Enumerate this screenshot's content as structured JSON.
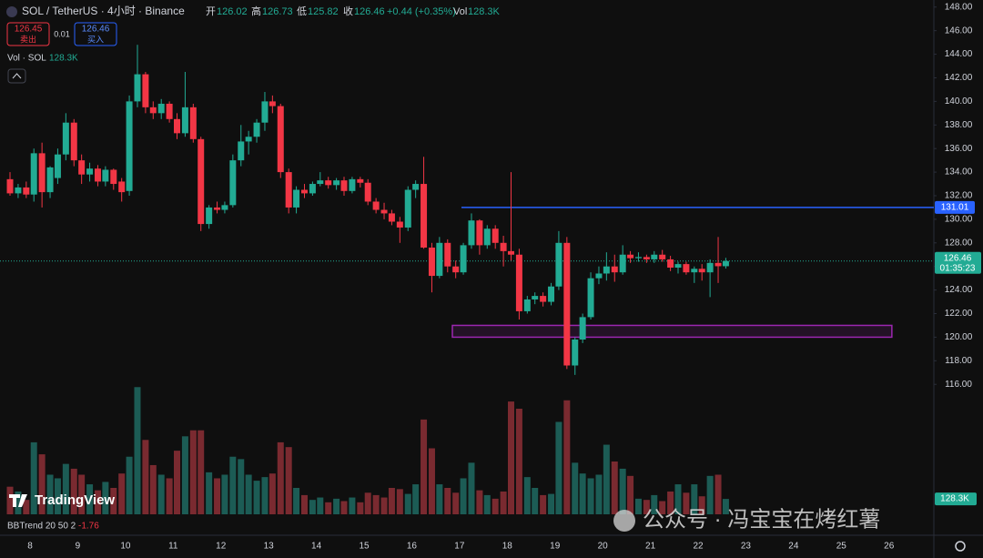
{
  "header": {
    "symbol": "SOL / TetherUS · 4小时 · Binance",
    "open_label": "开",
    "open": "126.02",
    "high_label": "高",
    "high": "126.73",
    "low_label": "低",
    "low": "125.82",
    "close_label": "收",
    "close": "126.46",
    "change": "+0.44 (+0.35%)",
    "vol_label": "Vol",
    "vol": "128.3K",
    "sell_price": "126.45",
    "sell": "卖出",
    "spread": "0.01",
    "buy_price": "126.46",
    "buy": "买入",
    "volume_indicator": "Vol · SOL",
    "volume_indicator_value": "128.3K",
    "bbtrend": "BBTrend 20 50 2",
    "bbtrend_value": "-1.76",
    "logo": "TradingView",
    "watermark": "公众号 · 冯宝宝在烤红薯"
  },
  "chart_data": {
    "type": "candlestick",
    "x": [
      7.58,
      7.75,
      7.92,
      8.08,
      8.25,
      8.42,
      8.58,
      8.75,
      8.92,
      9.08,
      9.25,
      9.42,
      9.58,
      9.75,
      9.92,
      10.08,
      10.25,
      10.42,
      10.58,
      10.75,
      10.92,
      11.08,
      11.25,
      11.42,
      11.58,
      11.75,
      11.92,
      12.08,
      12.25,
      12.42,
      12.58,
      12.75,
      12.92,
      13.08,
      13.25,
      13.42,
      13.58,
      13.75,
      13.92,
      14.08,
      14.25,
      14.42,
      14.58,
      14.75,
      14.92,
      15.08,
      15.25,
      15.42,
      15.58,
      15.75,
      15.92,
      16.08,
      16.25,
      16.42,
      16.58,
      16.75,
      16.92,
      17.08,
      17.25,
      17.42,
      17.58,
      17.75,
      17.92,
      18.08,
      18.25,
      18.42,
      18.58,
      18.75,
      18.92,
      19.08,
      19.25,
      19.42,
      19.58,
      19.75,
      19.92,
      20.08,
      20.25,
      20.42,
      20.58,
      20.75,
      20.92,
      21.08,
      21.25,
      21.42,
      21.58,
      21.75,
      21.92,
      22.08,
      22.25,
      22.42,
      22.58
    ],
    "open": [
      133.4,
      132.2,
      132.7,
      132.1,
      135.6,
      132.3,
      133.5,
      135.5,
      138.2,
      135,
      133.8,
      134.3,
      133.2,
      134.2,
      133.2,
      132.4,
      140,
      142.3,
      139.5,
      139,
      139.8,
      138.5,
      137.3,
      139.5,
      136.8,
      129.6,
      131,
      130.8,
      131.2,
      135,
      136.6,
      137,
      138.2,
      140,
      139.6,
      134,
      131,
      132.5,
      132.2,
      133,
      133.3,
      132.9,
      133.3,
      132.4,
      133.4,
      133.1,
      131.5,
      130.8,
      130.5,
      129.8,
      129.3,
      132.5,
      133,
      127.6,
      125.2,
      128,
      126,
      125.5,
      127.8,
      129.9,
      127.8,
      129.2,
      128,
      127.3,
      127,
      122.2,
      123.2,
      123.5,
      123,
      124.3,
      128,
      117.6,
      119.8,
      121.7,
      125,
      125.4,
      126,
      125.5,
      127,
      126.7,
      126.8,
      126.6,
      127,
      126.6,
      125.9,
      126.2,
      125.5,
      125.8,
      125.5,
      126.3,
      126.02
    ],
    "high": [
      134,
      133,
      133.2,
      136,
      136.5,
      134.5,
      136,
      139,
      138.5,
      135.5,
      134.8,
      134.6,
      134.5,
      134.3,
      133.5,
      140.5,
      144.8,
      142.5,
      140,
      140.2,
      140,
      139,
      142.5,
      139.8,
      137,
      131.2,
      131.5,
      131.5,
      135.5,
      138,
      137.5,
      138.5,
      140.8,
      140.5,
      139.8,
      134.3,
      132.8,
      133,
      133.2,
      134,
      133.6,
      133.5,
      133.6,
      133.6,
      133.6,
      133.4,
      131.8,
      131.4,
      130.8,
      130.2,
      132.8,
      133.3,
      135.3,
      128,
      128.5,
      128.3,
      126.5,
      128,
      130.5,
      130,
      129.5,
      129.5,
      128.6,
      134,
      127.5,
      123.5,
      123.8,
      123.8,
      124.6,
      129,
      128.5,
      120,
      122,
      125.5,
      126,
      127.2,
      127,
      127.8,
      127.3,
      127.2,
      127,
      127.3,
      127.4,
      126.9,
      126.4,
      126.4,
      126,
      126.2,
      126.6,
      128.5,
      126.73
    ],
    "low": [
      132,
      131.8,
      131.8,
      131.5,
      131,
      131.8,
      133,
      135,
      134.5,
      133,
      133.2,
      132.8,
      132.8,
      132.5,
      131.5,
      132,
      139.5,
      139,
      138.5,
      138.5,
      138.2,
      136.8,
      137,
      136.5,
      129,
      129.2,
      130.5,
      130.5,
      131,
      134.5,
      135.5,
      136.5,
      137.5,
      139,
      133.5,
      130.5,
      130.5,
      131.8,
      132,
      132.8,
      132.6,
      132.5,
      132,
      132.2,
      132.7,
      131.2,
      130.5,
      130,
      129.5,
      128,
      129,
      131.8,
      127.5,
      123.8,
      125,
      125.5,
      125,
      125.3,
      127.5,
      127,
      127.5,
      127.5,
      126,
      126.5,
      121.5,
      122,
      122.8,
      122.6,
      122.7,
      124,
      117.3,
      116.8,
      119.5,
      121.5,
      124.5,
      124.8,
      124.7,
      125.3,
      126.3,
      126.4,
      126.3,
      126.3,
      126.4,
      125.6,
      125.4,
      125.3,
      124.6,
      124.8,
      123.4,
      124.6,
      125.82
    ],
    "close": [
      132.2,
      132.7,
      132.1,
      135.6,
      132.3,
      134.4,
      135.5,
      138.2,
      135,
      133.8,
      134.3,
      133.2,
      134.2,
      133,
      132.3,
      140,
      142.3,
      139.5,
      139,
      139.8,
      138.5,
      137.3,
      139.5,
      136.8,
      129.6,
      131,
      130.8,
      131.2,
      135,
      136.6,
      137,
      138.2,
      140,
      139.6,
      134,
      131,
      132.5,
      132.2,
      133,
      133.3,
      132.9,
      133.3,
      132.4,
      133.4,
      133.1,
      131.5,
      130.8,
      130.5,
      129.8,
      129.3,
      132.5,
      133,
      127.6,
      125.2,
      128,
      126,
      125.5,
      127.8,
      129.9,
      127.8,
      129.2,
      128,
      127.3,
      127,
      122.2,
      123.2,
      123.5,
      123,
      124.3,
      128,
      117.6,
      119.8,
      121.7,
      125,
      125.4,
      126,
      125.5,
      127,
      126.7,
      126.8,
      126.6,
      127,
      126.6,
      125.9,
      126.2,
      125.5,
      125.8,
      125.5,
      126.3,
      126.02,
      126.46
    ],
    "volume": [
      230000,
      190000,
      120000,
      600000,
      500000,
      330000,
      300000,
      420000,
      380000,
      330000,
      250000,
      200000,
      270000,
      220000,
      340000,
      480000,
      1060000,
      620000,
      410000,
      330000,
      300000,
      530000,
      650000,
      700000,
      700000,
      350000,
      300000,
      330000,
      480000,
      460000,
      330000,
      280000,
      310000,
      340000,
      600000,
      560000,
      220000,
      160000,
      120000,
      140000,
      100000,
      130000,
      110000,
      140000,
      100000,
      180000,
      160000,
      140000,
      220000,
      210000,
      170000,
      250000,
      790000,
      550000,
      250000,
      220000,
      180000,
      300000,
      430000,
      200000,
      160000,
      130000,
      190000,
      940000,
      880000,
      310000,
      220000,
      160000,
      170000,
      770000,
      950000,
      430000,
      340000,
      300000,
      330000,
      580000,
      440000,
      380000,
      320000,
      130000,
      120000,
      160000,
      110000,
      190000,
      250000,
      180000,
      250000,
      150000,
      320000,
      330000,
      128300
    ],
    "volume_last_label": "128.3K",
    "up_color": "#22ab94",
    "down_color": "#f23645",
    "volume_up_color": "#1c5c55",
    "volume_down_color": "#7a2a30",
    "xlim": [
      7.37,
      26.94
    ],
    "xticks": [
      8,
      9,
      10,
      11,
      12,
      13,
      14,
      15,
      16,
      17,
      18,
      19,
      20,
      21,
      22,
      23,
      24,
      25,
      26
    ],
    "ylim": [
      103.2,
      148.6
    ],
    "yticks": [
      {
        "value": 116,
        "label": "116.00"
      },
      {
        "value": 118,
        "label": "118.00"
      },
      {
        "value": 120,
        "label": "120.00"
      },
      {
        "value": 122,
        "label": "122.00"
      },
      {
        "value": 124,
        "label": "124.00"
      },
      {
        "value": 126,
        "label": "126.00"
      },
      {
        "value": 128,
        "label": "128.00"
      },
      {
        "value": 130,
        "label": "130.00"
      },
      {
        "value": 132,
        "label": "132.00"
      },
      {
        "value": 134,
        "label": "134.00"
      },
      {
        "value": 136,
        "label": "136.00"
      },
      {
        "value": 138,
        "label": "138.00"
      },
      {
        "value": 140,
        "label": "140.00"
      },
      {
        "value": 142,
        "label": "142.00"
      },
      {
        "value": 144,
        "label": "144.00"
      },
      {
        "value": 146,
        "label": "146.00"
      },
      {
        "value": 148,
        "label": "148.00"
      }
    ],
    "volume_lim": [
      0,
      1100000
    ],
    "last_price": 126.46,
    "countdown": "01:35:23",
    "hline": {
      "value": 131.01,
      "x_start": 17.04,
      "color": "#2962ff"
    },
    "zone": {
      "low": 120,
      "high": 121,
      "x_start": 16.85,
      "x_end": 26.06,
      "color": "#9c27b0"
    }
  }
}
